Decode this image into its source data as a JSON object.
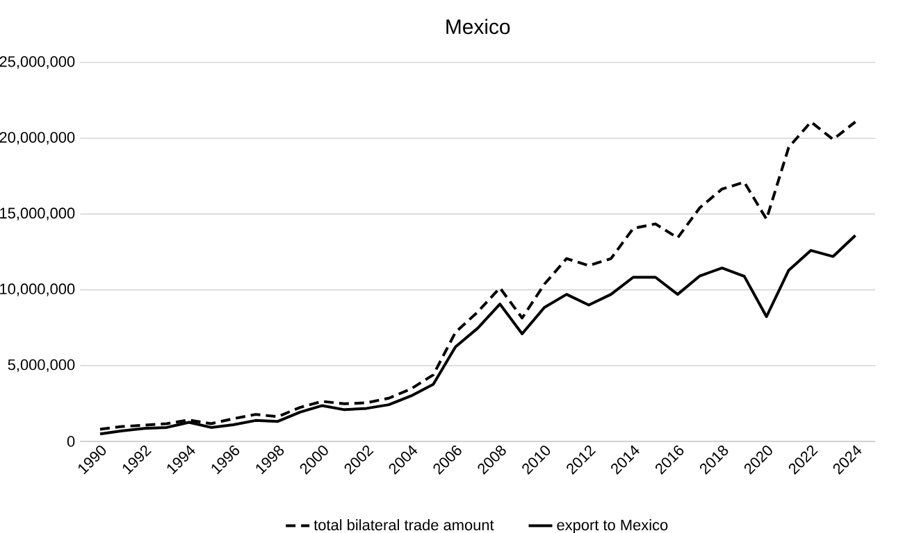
{
  "chart_data": {
    "type": "line",
    "title": "Mexico",
    "categories": [
      "1990",
      null,
      "1992",
      null,
      "1994",
      null,
      "1996",
      null,
      "1998",
      null,
      "2000",
      null,
      "2002",
      null,
      "2004",
      null,
      "2006",
      null,
      "2008",
      null,
      "2010",
      null,
      "2012",
      null,
      "2014",
      null,
      "2016",
      null,
      "2018",
      null,
      "2020",
      null,
      "2022",
      null,
      "2024"
    ],
    "series": [
      {
        "name": "total bilateral trade amount",
        "color": "#000000",
        "line_style": "dashed",
        "values": [
          800000,
          980000,
          1070000,
          1170000,
          1410000,
          1170000,
          1500000,
          1780000,
          1630000,
          2240000,
          2640000,
          2480000,
          2550000,
          2850000,
          3470000,
          4390000,
          7200000,
          8540000,
          10130000,
          8140000,
          10370000,
          12060000,
          11600000,
          12060000,
          14050000,
          14350000,
          13430000,
          15420000,
          16650000,
          17100000,
          14660000,
          19400000,
          21080000,
          19920000,
          21080000
        ]
      },
      {
        "name": "export to Mexico",
        "color": "#000000",
        "line_style": "solid",
        "values": [
          490000,
          700000,
          860000,
          920000,
          1260000,
          920000,
          1100000,
          1380000,
          1320000,
          1930000,
          2360000,
          2090000,
          2180000,
          2420000,
          3000000,
          3770000,
          6240000,
          7470000,
          9060000,
          7100000,
          8840000,
          9700000,
          9000000,
          9700000,
          10830000,
          10830000,
          9700000,
          10920000,
          11440000,
          10890000,
          8230000,
          11290000,
          12600000,
          12200000,
          13590000
        ]
      }
    ],
    "ylim": [
      0,
      25000000
    ],
    "yticks": [
      0,
      {
        "value": 5000000,
        "label": "5,000,000"
      },
      {
        "value": 10000000,
        "label": "10,000,000"
      },
      {
        "value": 15000000,
        "label": "15,000,000"
      },
      {
        "value": 20000000,
        "label": "20,000,000"
      },
      {
        "value": 25000000,
        "label": "25,000,000"
      }
    ],
    "grid": "y",
    "legend": "bottom",
    "marker": "none"
  }
}
